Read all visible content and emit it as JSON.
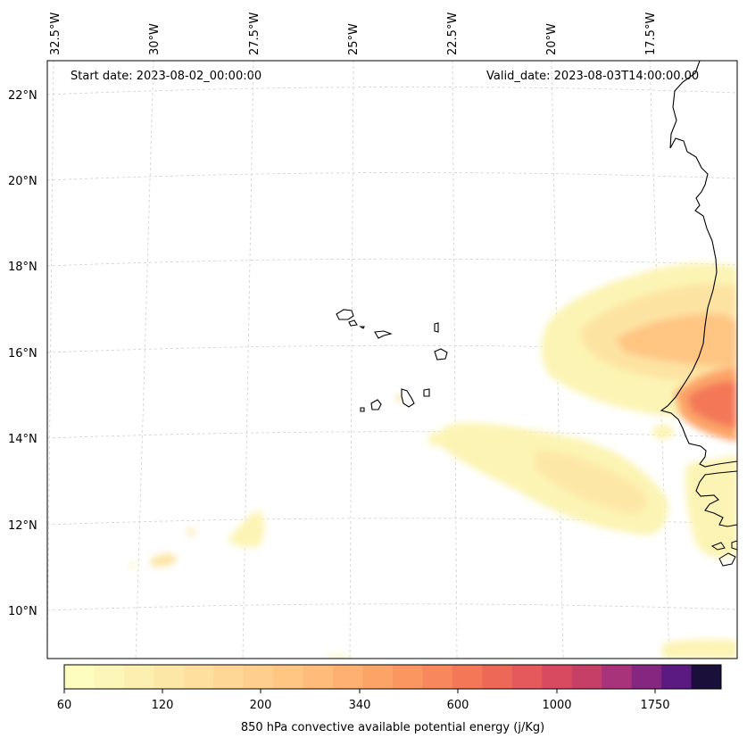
{
  "header": {
    "start_date": "Start date: 2023-08-02_00:00:00",
    "valid_date": "Valid_date: 2023-08-03T14:00:00.00"
  },
  "map": {
    "variable": "850 hPa convective available potential energy (j/Kg)",
    "longitude_labels": [
      "32.5°W",
      "30°W",
      "27.5°W",
      "25°W",
      "22.5°W",
      "20°W",
      "17.5°W"
    ],
    "latitude_labels": [
      "22°N",
      "20°N",
      "18°N",
      "16°N",
      "14°N",
      "12°N",
      "10°N"
    ],
    "extent": {
      "lon": [
        -32.6,
        -15.3
      ],
      "lat": [
        8.9,
        22.8
      ]
    },
    "gridlines": true
  },
  "colorbar": {
    "tick_labels": [
      "60",
      "120",
      "200",
      "340",
      "600",
      "1000",
      "1750"
    ],
    "levels": [
      60,
      80,
      100,
      120,
      140,
      160,
      180,
      200,
      250,
      300,
      340,
      400,
      500,
      600,
      700,
      800,
      900,
      1000,
      1250,
      1500,
      1750,
      2000
    ],
    "colors": [
      "#fcfdbf",
      "#fcf7b8",
      "#fcefb0",
      "#fde7a7",
      "#fedf9e",
      "#fed695",
      "#fece8c",
      "#fec583",
      "#febb7a",
      "#fdb071",
      "#fca468",
      "#fb9660",
      "#f8875b",
      "#f47858",
      "#ee6858",
      "#e5585b",
      "#d84a60",
      "#c63f67",
      "#a8337a",
      "#852781",
      "#5b1a80",
      "#1a0f3a"
    ]
  }
}
